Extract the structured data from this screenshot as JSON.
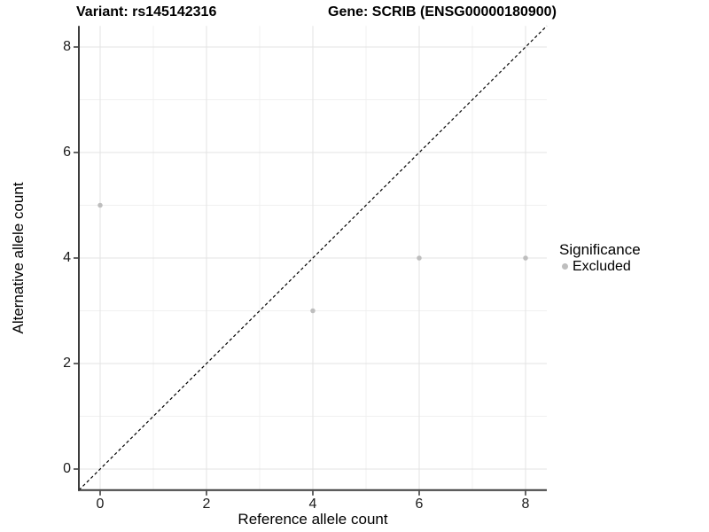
{
  "chart_data": {
    "type": "scatter",
    "title_left": "Variant: rs145142316",
    "title_right": "Gene: SCRIB (ENSG00000180900)",
    "xlabel": "Reference allele count",
    "ylabel": "Alternative allele count",
    "xlim": [
      -0.4,
      8.4
    ],
    "ylim": [
      -0.4,
      8.4
    ],
    "x_ticks": [
      0,
      2,
      4,
      6,
      8
    ],
    "y_ticks": [
      0,
      2,
      4,
      6,
      8
    ],
    "x_minor_ticks": [
      1,
      3,
      5,
      7
    ],
    "y_minor_ticks": [
      1,
      3,
      5,
      7
    ],
    "grid": "on",
    "identity_line": {
      "type": "abline",
      "slope": 1,
      "intercept": 0,
      "style": "dashed",
      "color": "#000000"
    },
    "series": [
      {
        "name": "Excluded",
        "color": "#bebebe",
        "point_radius": 2.75,
        "points": [
          {
            "x": 0,
            "y": 5
          },
          {
            "x": 4,
            "y": 3
          },
          {
            "x": 6,
            "y": 4
          },
          {
            "x": 8,
            "y": 4
          }
        ]
      }
    ],
    "legend": {
      "position": "right",
      "title": "Significance",
      "entries": [
        {
          "label": "Excluded",
          "color": "#bebebe"
        }
      ]
    },
    "colors": {
      "background": "#ffffff",
      "major_grid": "#e3e3e3",
      "minor_grid": "#f0f0f0",
      "axis_line": "#3c3c3c",
      "tick_mark": "#333333",
      "tick_text": "#1a1a1a",
      "title_text": "#000000"
    }
  }
}
